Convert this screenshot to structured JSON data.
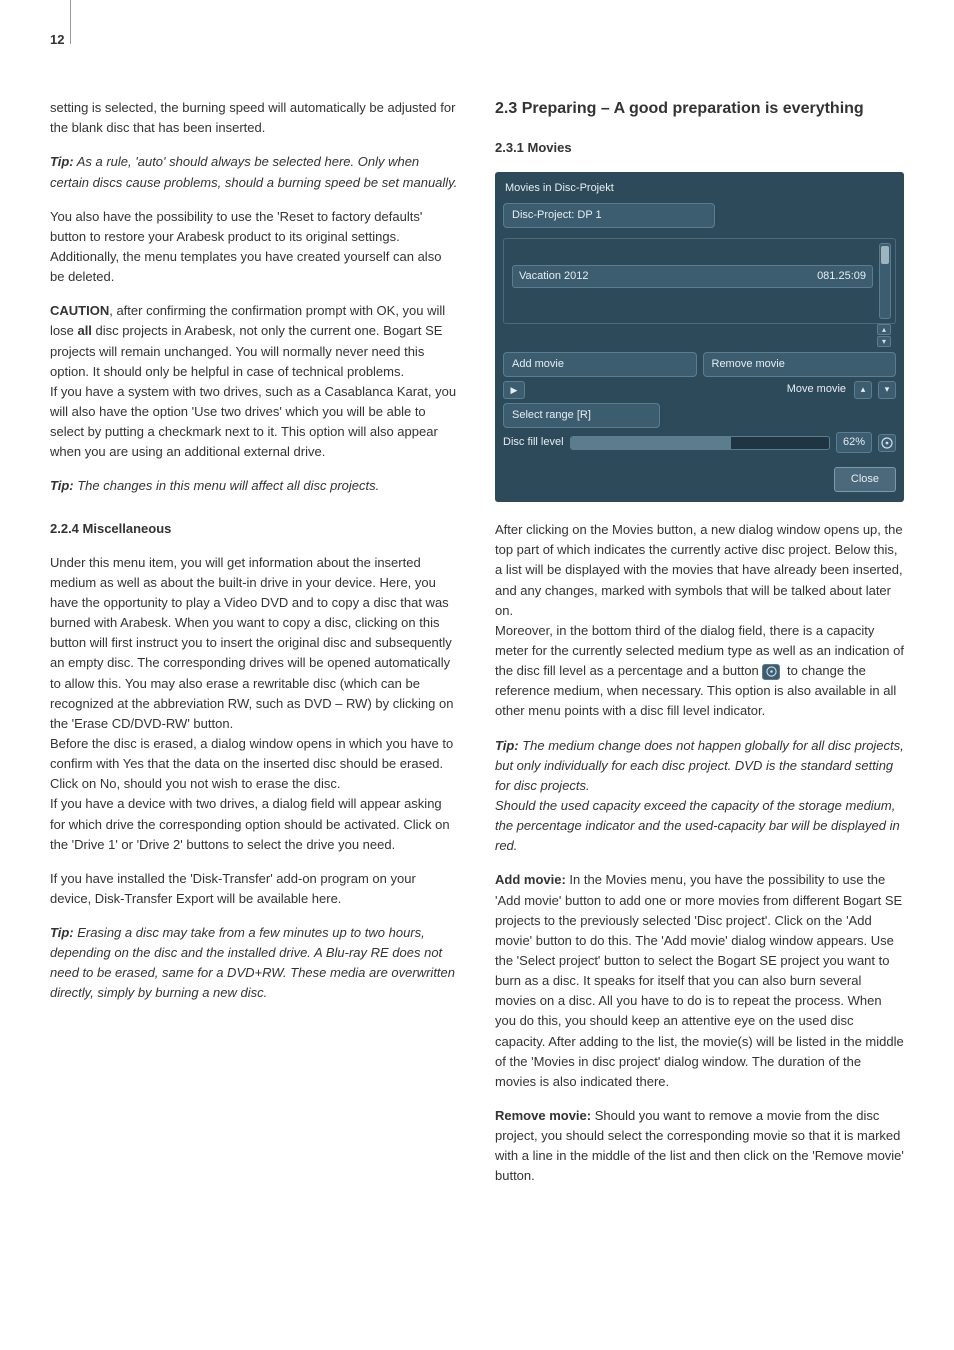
{
  "page_number": "12",
  "left": {
    "p1": "setting is selected, the burning speed will automatically be adjusted for the blank disc that has been inserted.",
    "tip1_label": "Tip:",
    "tip1": " As a rule, 'auto' should always be selected here. Only when certain discs cause problems, should a burning speed be set manually.",
    "p2": "You also have the possibility to use the 'Reset to factory defaults' button to restore your Arabesk product to its original settings. Additionally, the menu templates you have created yourself can also be deleted.",
    "caution_label": "CAUTION",
    "caution_a": ", after confirming the confirmation prompt with OK, you will lose ",
    "caution_all": "all",
    "caution_b": " disc projects in Arabesk, not only the current one. Bogart SE projects will remain unchanged. You will normally never need this option. It should only be helpful in case of technical problems.",
    "p3": "If you have a system with two drives, such as a Casablanca Karat, you will also have the option 'Use two drives' which you will be able to select by putting a checkmark next to it. This option will also appear when you are using an additional external drive.",
    "tip2_label": "Tip:",
    "tip2": " The changes in this menu will affect all disc projects.",
    "h_misc": "2.2.4 Miscellaneous",
    "p4": "Under this menu item, you will get information about the inserted medium as well as about the built-in drive in your device. Here, you have the opportunity to play a Video DVD and to copy a disc that was burned with Arabesk. When you want to copy a disc, clicking on this button will first instruct you to insert the original disc and subsequently an empty disc. The corresponding drives will be opened automatically to allow this. You may also erase a rewritable disc (which can be recognized at the abbreviation RW, such as DVD – RW) by clicking on the 'Erase CD/DVD-RW' button.",
    "p5": "Before the disc is erased, a dialog window opens in which you have to confirm with Yes that the data on the inserted disc should be erased. Click on No, should you not wish to erase the disc.",
    "p6": "If you have a device with two drives, a dialog field will appear asking for which drive the corresponding option should be activated. Click on the 'Drive 1' or 'Drive 2' buttons to select the drive you need.",
    "p7": "If you have installed the 'Disk-Transfer' add-on program on your device, Disk-Transfer Export will be available here.",
    "tip3_label": "Tip:",
    "tip3": " Erasing a disc may take from a few minutes up to two hours, depending on the disc and the installed drive. A Blu-ray RE does not need to be erased, same for a DVD+RW. These media are overwritten directly, simply by burning a new disc."
  },
  "right": {
    "h_prep": "2.3 Preparing – A good preparation is everything",
    "h_movies": "2.3.1 Movies",
    "p1": "After clicking on the Movies button, a new dialog window opens up, the top part of which indicates the currently active disc project. Below this, a list will be displayed with the movies that have already been inserted, and any changes, marked with symbols that will be talked about later on.",
    "p2a": "Moreover, in the bottom third of the dialog field, there is a capacity meter for the currently selected medium type as well as an indication of the disc fill level as a percentage and a button ",
    "p2b": " to change the reference medium, when necessary. This option is also available in all other menu points with a disc fill level indicator.",
    "tip1_label": "Tip:",
    "tip1a": " The medium change does not happen globally for all disc projects, but only individually for each disc project. DVD is the standard setting for disc projects.",
    "tip1b": "Should the used capacity exceed the capacity of the storage medium, the percentage indicator and the used-capacity bar will be displayed in red.",
    "add_label": "Add movie:",
    "add_text": " In the Movies menu, you have the possibility to use the 'Add movie' button to add one or more movies from different Bogart SE projects to the previously selected 'Disc project'. Click on the 'Add movie' button to do this. The 'Add movie' dialog window appears. Use the 'Select project' button to select the Bogart SE project you want to burn as a disc. It speaks for itself that you can also burn several movies on a disc. All you have to do is to repeat the process. When you do this, you should keep an attentive eye on the used disc capacity. After adding to the list, the movie(s) will be listed in the middle of the 'Movies in disc project' dialog window. The duration of the movies is also indicated there.",
    "rem_label": "Remove movie:",
    "rem_text": " Should you want to remove a movie from the disc project, you should select the corresponding movie so that it is marked with a line in the middle of the list and then click on the 'Remove movie' button."
  },
  "dialog": {
    "title": "Movies in Disc-Projekt",
    "project": "Disc-Project: DP 1",
    "movie_name": "Vacation  2012",
    "movie_time": "081.25:09",
    "add": "Add movie",
    "remove": "Remove movie",
    "move": "Move movie",
    "range": "Select range [R]",
    "fill_label": "Disc fill level",
    "fill_pct": "62%",
    "fill_value_percent": 62,
    "close": "Close",
    "colors": {
      "bg": "#2d4a5a",
      "btn": "#3b5d6f",
      "border": "#5c7d8e",
      "text": "#e8eef2"
    }
  }
}
